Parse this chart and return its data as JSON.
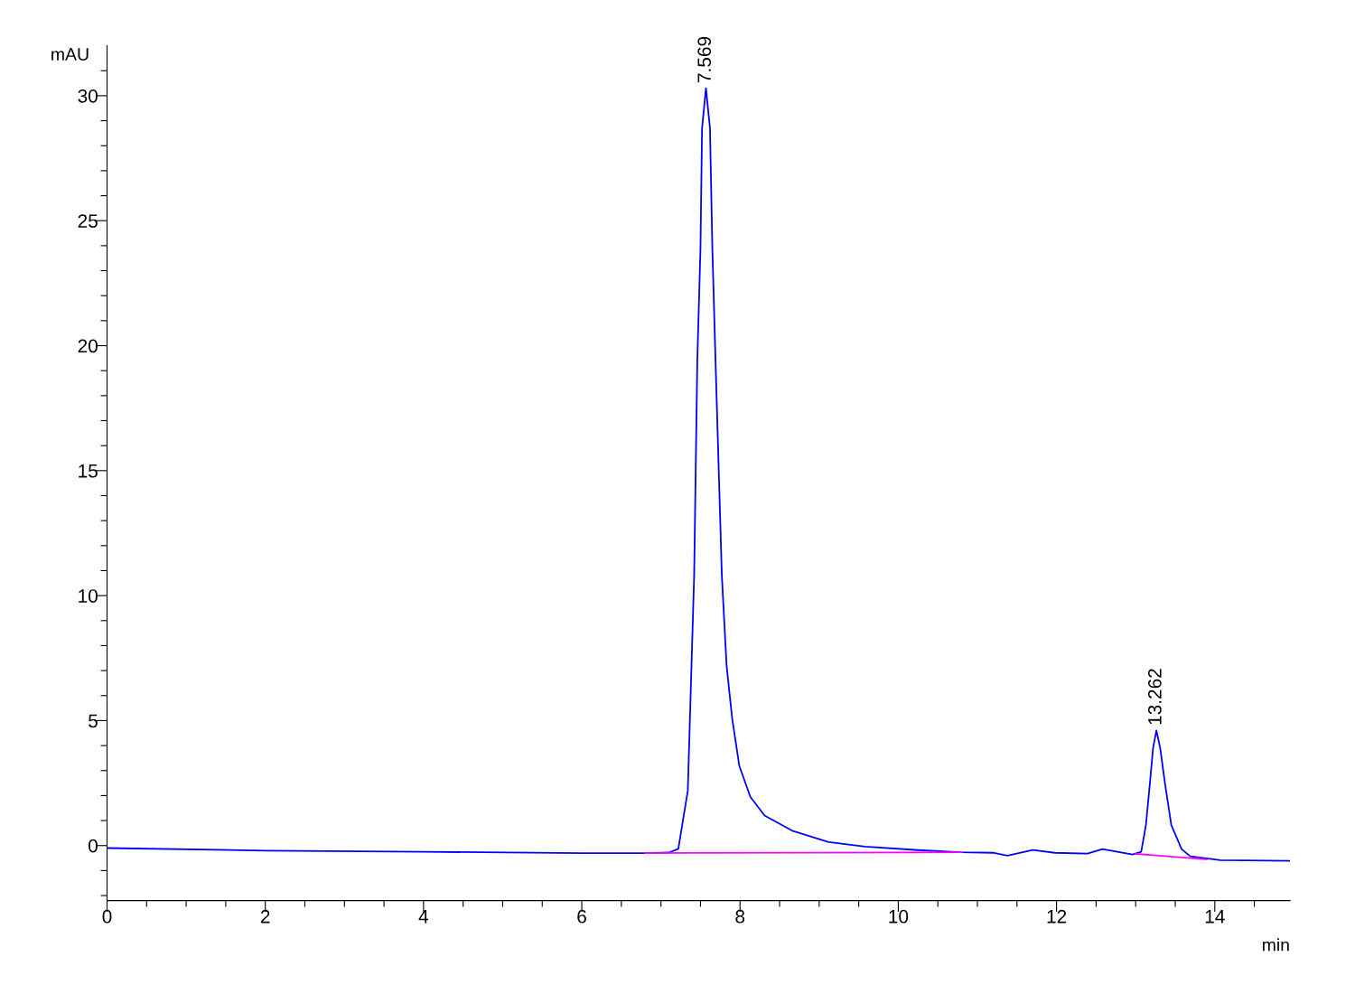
{
  "chart_data": {
    "type": "line",
    "xlabel": "min",
    "ylabel": "mAU",
    "xlim": [
      0,
      14.95
    ],
    "ylim": [
      -2.2,
      32
    ],
    "xticks": [
      0,
      {
        "value": 0.5,
        "label": null
      },
      {
        "value": 1,
        "label": null
      },
      {
        "value": 1.5,
        "label": null
      },
      2,
      {
        "value": 2.5,
        "label": null
      },
      {
        "value": 3,
        "label": null
      },
      {
        "value": 3.5,
        "label": null
      },
      4,
      {
        "value": 4.5,
        "label": null
      },
      {
        "value": 5,
        "label": null
      },
      {
        "value": 5.5,
        "label": null
      },
      6,
      {
        "value": 6.5,
        "label": null
      },
      {
        "value": 7,
        "label": null
      },
      {
        "value": 7.5,
        "label": null
      },
      8,
      {
        "value": 8.5,
        "label": null
      },
      {
        "value": 9,
        "label": null
      },
      {
        "value": 9.5,
        "label": null
      },
      10,
      {
        "value": 10.5,
        "label": null
      },
      {
        "value": 11,
        "label": null
      },
      {
        "value": 11.5,
        "label": null
      },
      12,
      {
        "value": 12.5,
        "label": null
      },
      {
        "value": 13,
        "label": null
      },
      {
        "value": 13.5,
        "label": null
      },
      14,
      {
        "value": 14.5,
        "label": null
      }
    ],
    "yticks": [
      {
        "value": -2,
        "label": null
      },
      {
        "value": -1,
        "label": null
      },
      0,
      {
        "value": 1,
        "label": null
      },
      {
        "value": 2,
        "label": null
      },
      {
        "value": 3,
        "label": null
      },
      {
        "value": 4,
        "label": null
      },
      5,
      {
        "value": 6,
        "label": null
      },
      {
        "value": 7,
        "label": null
      },
      {
        "value": 8,
        "label": null
      },
      {
        "value": 9,
        "label": null
      },
      10,
      {
        "value": 11,
        "label": null
      },
      {
        "value": 12,
        "label": null
      },
      {
        "value": 13,
        "label": null
      },
      {
        "value": 14,
        "label": null
      },
      15,
      {
        "value": 16,
        "label": null
      },
      {
        "value": 17,
        "label": null
      },
      {
        "value": 18,
        "label": null
      },
      {
        "value": 19,
        "label": null
      },
      20,
      {
        "value": 21,
        "label": null
      },
      {
        "value": 22,
        "label": null
      },
      {
        "value": 23,
        "label": null
      },
      {
        "value": 24,
        "label": null
      },
      25,
      {
        "value": 26,
        "label": null
      },
      {
        "value": 27,
        "label": null
      },
      {
        "value": 28,
        "label": null
      },
      {
        "value": 29,
        "label": null
      },
      30,
      {
        "value": 31,
        "label": null
      }
    ],
    "grid": false,
    "legend": false,
    "marker": "none",
    "line_style": "solid",
    "series": [
      {
        "color": "#0000ff",
        "x": [
          0,
          2,
          4,
          6,
          6.8,
          7.1,
          7.22,
          7.34,
          7.38,
          7.42,
          7.44,
          7.46,
          7.5,
          7.52,
          7.569,
          7.62,
          7.65,
          7.69,
          7.73,
          7.77,
          7.83,
          7.9,
          7.99,
          8.13,
          8.31,
          8.67,
          9.12,
          9.58,
          10.25,
          10.79,
          11.21,
          11.38,
          11.7,
          11.98,
          12.39,
          12.58,
          12.96,
          13.07,
          13.13,
          13.18,
          13.22,
          13.262,
          13.31,
          13.37,
          13.45,
          13.58,
          13.69,
          14.07,
          14.95
        ],
        "values": [
          -0.1,
          -0.2,
          -0.25,
          -0.3,
          -0.3,
          -0.28,
          -0.13,
          2.2,
          6.5,
          10.8,
          15.1,
          19.4,
          23.9,
          28.7,
          30.3,
          28.7,
          23.9,
          19.4,
          15.1,
          10.8,
          7.2,
          5.1,
          3.2,
          1.95,
          1.2,
          0.58,
          0.14,
          -0.04,
          -0.18,
          -0.27,
          -0.29,
          -0.4,
          -0.18,
          -0.29,
          -0.32,
          -0.14,
          -0.36,
          -0.25,
          0.83,
          2.5,
          3.9,
          4.6,
          3.9,
          2.5,
          0.83,
          -0.14,
          -0.43,
          -0.58,
          -0.61
        ]
      },
      {
        "color": "#ff00ff",
        "x": [
          6.8,
          10.8
        ],
        "values": [
          -0.3,
          -0.27
        ]
      },
      {
        "color": "#ff00ff",
        "x": [
          13.0,
          13.9
        ],
        "values": [
          -0.33,
          -0.55
        ]
      }
    ],
    "annotations": [
      {
        "text": "7.569",
        "x": 7.569,
        "y": 30.3
      },
      {
        "text": "13.262",
        "x": 13.262,
        "y": 4.6
      }
    ]
  }
}
